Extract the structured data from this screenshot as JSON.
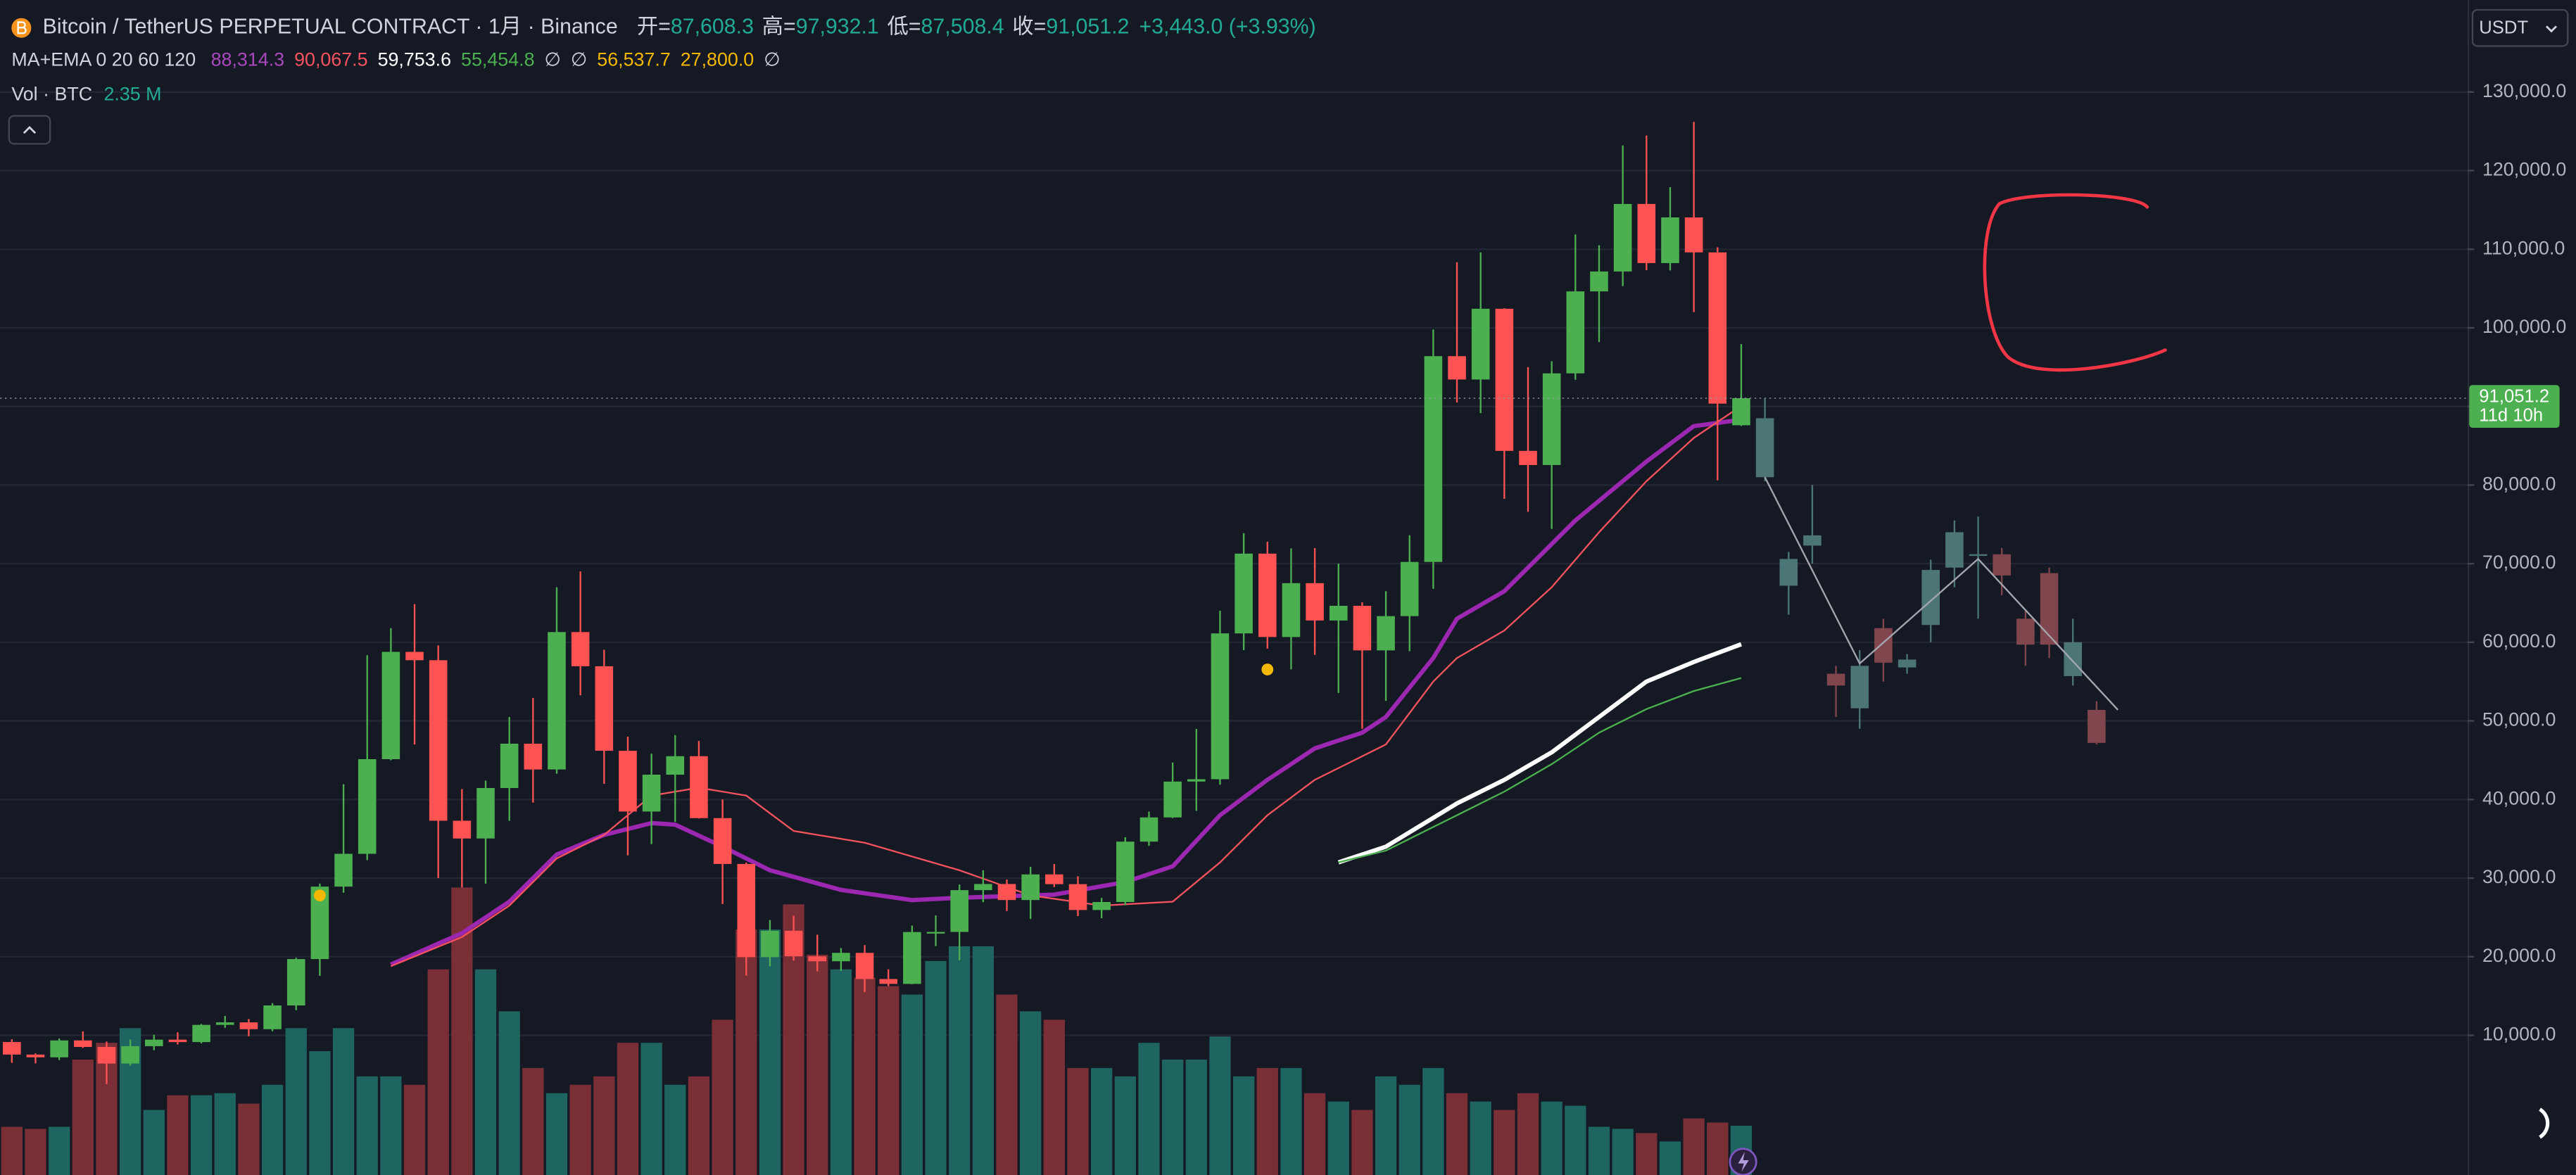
{
  "header": {
    "symbol": "Bitcoin / TetherUS PERPETUAL CONTRACT · 1月 · Binance",
    "ohlc": [
      {
        "label": "开=",
        "value": "87,608.3"
      },
      {
        "label": "高=",
        "value": "97,932.1"
      },
      {
        "label": "低=",
        "value": "87,508.4"
      },
      {
        "label": "收=",
        "value": "91,051.2"
      }
    ],
    "change": "+3,443.0 (+3.93%)"
  },
  "indicators": {
    "label": "MA+EMA 0 20 60 120",
    "values": [
      {
        "text": "88,314.3",
        "color": "#ab47bc"
      },
      {
        "text": "90,067.5",
        "color": "#f7525f"
      },
      {
        "text": "59,753.6",
        "color": "#ffffff"
      },
      {
        "text": "55,454.8",
        "color": "#4caf50"
      },
      {
        "text": "∅",
        "color": "#d1d4dc"
      },
      {
        "text": "∅",
        "color": "#d1d4dc"
      },
      {
        "text": "56,537.7",
        "color": "#f5b800"
      },
      {
        "text": "27,800.0",
        "color": "#f5b800"
      },
      {
        "text": "∅",
        "color": "#d1d4dc"
      }
    ]
  },
  "volume_legend": {
    "label": "Vol · BTC",
    "value": "2.35 M"
  },
  "currency": "USDT",
  "chart_data": {
    "type": "candlestick",
    "xlim": [
      -0.5,
      103.66
    ],
    "ylim": [
      -7770,
      141708
    ],
    "yticks": [
      {
        "value": 10000,
        "label": "10,000.0"
      },
      {
        "value": 20000,
        "label": "20,000.0"
      },
      {
        "value": 30000,
        "label": "30,000.0"
      },
      {
        "value": 40000,
        "label": "40,000.0"
      },
      {
        "value": 50000,
        "label": "50,000.0"
      },
      {
        "value": 60000,
        "label": "60,000.0"
      },
      {
        "value": 70000,
        "label": "70,000.0"
      },
      {
        "value": 80000,
        "label": "80,000.0"
      },
      {
        "value": 90000,
        "label": "90,000.0"
      },
      {
        "value": 100000,
        "label": "100,000.0"
      },
      {
        "value": 110000,
        "label": "110,000.0"
      },
      {
        "value": 120000,
        "label": "120,000.0"
      },
      {
        "value": 130000,
        "label": "130,000.0"
      }
    ],
    "grid": true,
    "up_color": "#4caf50",
    "down_color": "#ff5252",
    "candles": {
      "open": [
        9150,
        7550,
        7200,
        9350,
        8520,
        6410,
        8620,
        9450,
        9140,
        11330,
        11650,
        10780,
        13800,
        19700,
        28920,
        33090,
        45130,
        58780,
        57720,
        37300,
        35040,
        41460,
        47100,
        43820,
        61300,
        56950,
        46200,
        38470,
        43160,
        45510,
        37630,
        31800,
        19940,
        23300,
        20050,
        19420,
        20490,
        17160,
        16540,
        23140,
        23150,
        28470,
        29250,
        27210,
        30470,
        29230,
        25940,
        26960,
        34640,
        37720,
        42280,
        42580,
        61130,
        71280,
        60670,
        67520,
        62770,
        64640,
        58970,
        63330,
        70220,
        96400,
        93430,
        102430,
        84350,
        82550,
        94210,
        104640,
        107170,
        115760,
        108240,
        114050,
        109600,
        87608.3
      ],
      "high": [
        9500,
        7700,
        9600,
        10500,
        9200,
        9460,
        10070,
        10380,
        11440,
        12470,
        12070,
        14100,
        19860,
        29300,
        41950,
        58350,
        61800,
        64850,
        59600,
        41330,
        42400,
        50500,
        52920,
        66999,
        69000,
        59050,
        47990,
        45820,
        48190,
        47450,
        40000,
        31980,
        24670,
        25200,
        22800,
        21100,
        21480,
        18390,
        23960,
        25250,
        29180,
        31000,
        29820,
        31430,
        31800,
        30230,
        27480,
        35200,
        38450,
        44700,
        48970,
        64000,
        73880,
        72800,
        71950,
        71980,
        70000,
        65100,
        66500,
        73620,
        99800,
        108350,
        109600,
        102500,
        95000,
        95750,
        111880,
        110500,
        123200,
        124470,
        117900,
        126200,
        110250,
        97932.1
      ],
      "low": [
        6500,
        6430,
        6850,
        8400,
        3800,
        6150,
        8100,
        8830,
        8980,
        10950,
        9880,
        10520,
        13200,
        17570,
        28130,
        32300,
        45000,
        47000,
        30000,
        28800,
        29300,
        37300,
        39600,
        43280,
        53250,
        42000,
        32900,
        34320,
        37150,
        37580,
        26700,
        17600,
        18780,
        19520,
        18150,
        18200,
        15480,
        16250,
        16500,
        21350,
        19550,
        26940,
        25810,
        24800,
        28860,
        25170,
        24900,
        26540,
        34100,
        37630,
        38550,
        41880,
        59000,
        59190,
        56550,
        58400,
        53550,
        49000,
        52550,
        58870,
        66800,
        90500,
        89160,
        78250,
        76600,
        74420,
        93400,
        98200,
        105300,
        107350,
        107300,
        102000,
        80600,
        87508.4
      ],
      "close": [
        7550,
        7200,
        9350,
        8520,
        6410,
        8620,
        9450,
        9140,
        11330,
        11650,
        10780,
        13800,
        19700,
        28920,
        33090,
        45130,
        58780,
        57720,
        37300,
        35040,
        41460,
        47100,
        43820,
        61300,
        56950,
        46200,
        38470,
        43160,
        45510,
        37630,
        31800,
        19940,
        23300,
        20050,
        19420,
        20490,
        17160,
        16540,
        23140,
        23150,
        28470,
        29250,
        27210,
        30470,
        29230,
        25940,
        26960,
        34640,
        37720,
        42280,
        42580,
        61130,
        71280,
        60670,
        67520,
        62770,
        64640,
        58970,
        63330,
        70220,
        96400,
        93430,
        102430,
        84350,
        82550,
        94210,
        104640,
        107170,
        115760,
        108240,
        114050,
        109600,
        90360,
        91051.2
      ]
    },
    "volume": {
      "ylim": [
        0,
        56
      ],
      "up_color": "#1e6460",
      "down_color": "#7a2f36",
      "values": [
        2.3,
        2.2,
        2.3,
        5.5,
        6.3,
        7.0,
        3.1,
        3.8,
        3.8,
        3.9,
        3.4,
        4.3,
        7.0,
        5.9,
        7.0,
        4.7,
        4.7,
        4.3,
        9.8,
        13.7,
        9.8,
        7.8,
        5.1,
        3.9,
        4.3,
        4.7,
        6.3,
        6.3,
        4.3,
        4.7,
        7.4,
        11.7,
        11.7,
        12.9,
        10.5,
        9.8,
        9.4,
        9.0,
        8.6,
        10.2,
        10.9,
        10.9,
        8.6,
        7.8,
        7.4,
        5.1,
        5.1,
        4.7,
        6.3,
        5.5,
        5.5,
        6.6,
        4.7,
        5.1,
        5.1,
        3.9,
        3.5,
        3.1,
        4.7,
        4.3,
        5.1,
        3.9,
        3.5,
        3.1,
        3.9,
        3.5,
        3.3,
        2.3,
        2.2,
        2.0,
        1.6,
        2.7,
        2.5,
        2.35
      ]
    },
    "lines": [
      {
        "color": "#9c27b0",
        "width": 2.6,
        "x": [
          16,
          19,
          21,
          23,
          25,
          27,
          28,
          30,
          32,
          35,
          38,
          40,
          44,
          47,
          49,
          51,
          53,
          55,
          57,
          58,
          60,
          61,
          63,
          64,
          66,
          67,
          69,
          71,
          73
        ],
        "values": [
          19000,
          23000,
          27000,
          33000,
          35500,
          37000,
          36800,
          34000,
          31000,
          28500,
          27200,
          27500,
          27900,
          29500,
          31500,
          38000,
          42500,
          46500,
          48500,
          50500,
          58000,
          63000,
          66500,
          69500,
          75500,
          78000,
          83000,
          87500,
          88314.3
        ]
      },
      {
        "color": "#f7525f",
        "width": 1,
        "x": [
          16,
          19,
          21,
          23,
          25,
          27,
          29,
          31,
          33,
          36,
          40,
          43,
          46,
          49,
          51,
          53,
          55,
          58,
          60,
          61,
          63,
          65,
          67,
          69,
          71,
          73
        ],
        "values": [
          18800,
          22500,
          26500,
          32500,
          35500,
          40500,
          41500,
          40500,
          36000,
          34500,
          31000,
          27800,
          26500,
          27000,
          32000,
          38000,
          42500,
          47000,
          55000,
          58000,
          61500,
          67000,
          74000,
          80500,
          86000,
          90067.5
        ]
      },
      {
        "color": "#ffffff",
        "width": 2.6,
        "x": [
          56,
          58,
          61,
          63,
          65,
          67,
          69,
          71,
          73
        ],
        "values": [
          32000,
          34000,
          39500,
          42500,
          46000,
          50500,
          55000,
          57500,
          59753.6
        ]
      },
      {
        "color": "#4caf50",
        "width": 1,
        "x": [
          56,
          58,
          61,
          63,
          65,
          67,
          69,
          71,
          73
        ],
        "values": [
          32000,
          33500,
          38000,
          41000,
          44500,
          48500,
          51500,
          53800,
          55454.8
        ]
      }
    ],
    "markers": {
      "color": "#f5b800",
      "x": [
        13,
        53
      ],
      "values": [
        27800,
        56537.7
      ]
    },
    "last_price": {
      "value": 91051.2,
      "label": "91,051.2",
      "countdown": "11d 10h",
      "color": "#4caf50"
    },
    "projection": {
      "up_color": "#5a8c8b",
      "down_color": "#9c5058",
      "x": [
        74,
        75,
        76,
        77,
        78,
        79,
        80,
        81,
        82,
        83,
        84,
        85,
        86,
        87,
        88
      ],
      "open": [
        81000,
        67200,
        72300,
        56000,
        51600,
        61800,
        56800,
        62200,
        69500,
        71000,
        71200,
        63000,
        68800,
        55700,
        51400
      ],
      "high": [
        91000,
        71500,
        80000,
        57000,
        59000,
        63000,
        58500,
        70500,
        75500,
        76000,
        72000,
        64000,
        69500,
        63000,
        52500
      ],
      "low": [
        80500,
        63500,
        70000,
        50500,
        49000,
        55000,
        56000,
        60000,
        67000,
        63000,
        66000,
        57000,
        58000,
        54500,
        47000
      ],
      "close": [
        88500,
        70600,
        73600,
        54500,
        57000,
        57400,
        57800,
        69200,
        74000,
        71200,
        68500,
        59700,
        59700,
        60000,
        47200
      ],
      "line": {
        "color": "#c8cad0",
        "x": [
          74,
          78,
          83,
          88.9
        ],
        "values": [
          81000,
          57300,
          70600,
          51400
        ]
      }
    }
  }
}
